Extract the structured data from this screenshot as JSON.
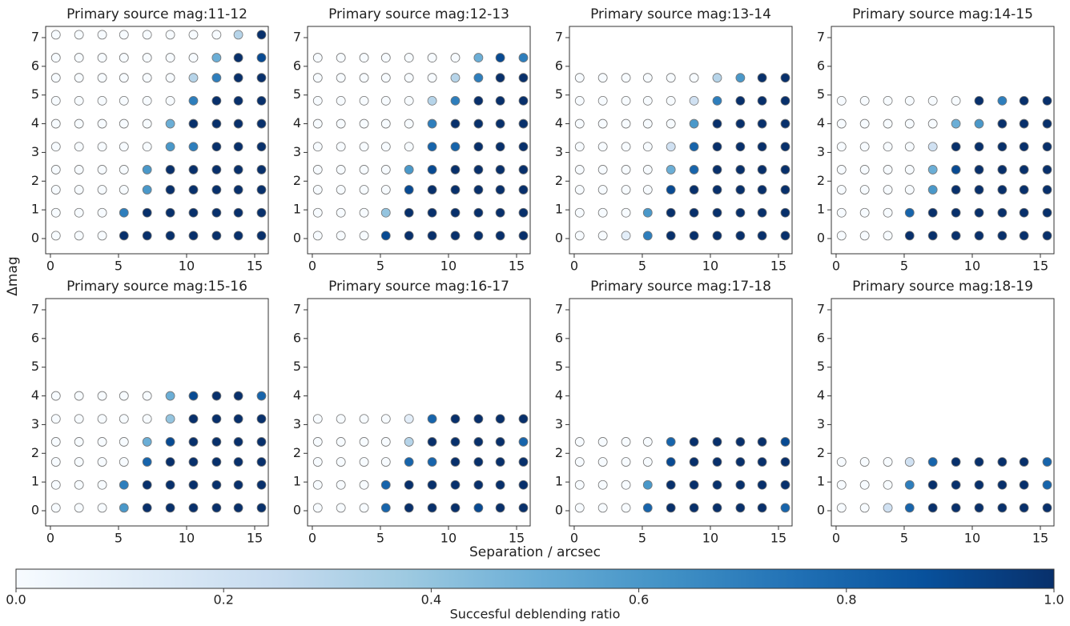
{
  "chart_data": [
    {
      "type": "scatter",
      "title": "Primary source mag:11-12",
      "x": [
        0.4,
        2.1,
        3.8,
        5.4,
        7.1,
        8.8,
        10.5,
        12.2,
        13.8,
        15.5
      ],
      "y": [
        0.1,
        0.9,
        1.7,
        2.4,
        3.2,
        4.0,
        4.8,
        5.6,
        6.3,
        7.1
      ],
      "values": [
        [
          0,
          0,
          0,
          1,
          1,
          1,
          1,
          1,
          1,
          1
        ],
        [
          0,
          0,
          0,
          0.7,
          1,
          1,
          1,
          1,
          1,
          1
        ],
        [
          0,
          0,
          0,
          0,
          0.6,
          1,
          1,
          1,
          1,
          1
        ],
        [
          0,
          0,
          0,
          0,
          0.6,
          1,
          1,
          1,
          1,
          1
        ],
        [
          0,
          0,
          0,
          0,
          0,
          0.6,
          0.7,
          1,
          1,
          1
        ],
        [
          0,
          0,
          0,
          0,
          0,
          0.5,
          1,
          1,
          1,
          1
        ],
        [
          0,
          0,
          0,
          0,
          0,
          0,
          0.7,
          1,
          1,
          1
        ],
        [
          0,
          0,
          0,
          0,
          0,
          0,
          0.3,
          0.7,
          1,
          1
        ],
        [
          0,
          0,
          0,
          0,
          0,
          0,
          0,
          0.5,
          1,
          0.9
        ],
        [
          0,
          0,
          0,
          0,
          0,
          0,
          0,
          0,
          0.3,
          1
        ]
      ],
      "xlim": [
        -0.35,
        16.0
      ],
      "ylim": [
        -0.53,
        7.39
      ],
      "xticks": [
        0,
        5,
        10,
        15
      ],
      "yticks": [
        0,
        1,
        2,
        3,
        4,
        5,
        6,
        7
      ]
    },
    {
      "type": "scatter",
      "title": "Primary source mag:12-13",
      "x": [
        0.4,
        2.1,
        3.8,
        5.4,
        7.1,
        8.8,
        10.5,
        12.2,
        13.8,
        15.5
      ],
      "y": [
        0.1,
        0.9,
        1.7,
        2.4,
        3.2,
        4.0,
        4.8,
        5.6,
        6.3
      ],
      "values": [
        [
          0,
          0,
          0,
          0.9,
          1,
          1,
          1,
          1,
          1,
          1
        ],
        [
          0,
          0,
          0,
          0.4,
          1,
          1,
          1,
          1,
          1,
          1
        ],
        [
          0,
          0,
          0,
          0,
          0.9,
          1,
          1,
          1,
          1,
          1
        ],
        [
          0,
          0,
          0,
          0,
          0.6,
          0.9,
          1,
          1,
          1,
          1
        ],
        [
          0,
          0,
          0,
          0,
          0,
          0.8,
          0.8,
          1,
          1,
          1
        ],
        [
          0,
          0,
          0,
          0,
          0,
          0.7,
          1,
          1,
          1,
          1
        ],
        [
          0,
          0,
          0,
          0,
          0,
          0.3,
          0.7,
          1,
          1,
          1
        ],
        [
          0,
          0,
          0,
          0,
          0,
          0,
          0.3,
          0.7,
          1,
          1
        ],
        [
          0,
          0,
          0,
          0,
          0,
          0,
          0,
          0.5,
          0.9,
          0.7
        ]
      ],
      "xlim": [
        -0.35,
        16.0
      ],
      "ylim": [
        -0.53,
        7.39
      ],
      "xticks": [
        0,
        5,
        10,
        15
      ],
      "yticks": [
        0,
        1,
        2,
        3,
        4,
        5,
        6,
        7
      ]
    },
    {
      "type": "scatter",
      "title": "Primary source mag:13-14",
      "x": [
        0.4,
        2.1,
        3.8,
        5.4,
        7.1,
        8.8,
        10.5,
        12.2,
        13.8,
        15.5
      ],
      "y": [
        0.1,
        0.9,
        1.7,
        2.4,
        3.2,
        4.0,
        4.8,
        5.6
      ],
      "values": [
        [
          0,
          0,
          0.1,
          0.7,
          1,
          1,
          1,
          1,
          1,
          1
        ],
        [
          0,
          0,
          0,
          0.6,
          1,
          1,
          1,
          1,
          1,
          1
        ],
        [
          0,
          0,
          0,
          0,
          0.9,
          1,
          1,
          1,
          1,
          1
        ],
        [
          0,
          0,
          0,
          0,
          0.5,
          0.8,
          1,
          1,
          1,
          1
        ],
        [
          0,
          0,
          0,
          0,
          0.2,
          0.8,
          1,
          1,
          1,
          1
        ],
        [
          0,
          0,
          0,
          0,
          0,
          0.6,
          1,
          1,
          1,
          1
        ],
        [
          0,
          0,
          0,
          0,
          0,
          0.2,
          0.7,
          1,
          1,
          1
        ],
        [
          0,
          0,
          0,
          0,
          0,
          0,
          0.3,
          0.6,
          1,
          1
        ]
      ],
      "xlim": [
        -0.35,
        16.0
      ],
      "ylim": [
        -0.53,
        7.39
      ],
      "xticks": [
        0,
        5,
        10,
        15
      ],
      "yticks": [
        0,
        1,
        2,
        3,
        4,
        5,
        6,
        7
      ]
    },
    {
      "type": "scatter",
      "title": "Primary source mag:14-15",
      "x": [
        0.4,
        2.1,
        3.8,
        5.4,
        7.1,
        8.8,
        10.5,
        12.2,
        13.8,
        15.5
      ],
      "y": [
        0.1,
        0.9,
        1.7,
        2.4,
        3.2,
        4.0,
        4.8
      ],
      "values": [
        [
          0,
          0,
          0,
          1,
          1,
          1,
          1,
          1,
          1,
          1
        ],
        [
          0,
          0,
          0,
          0.8,
          1,
          1,
          1,
          1,
          1,
          1
        ],
        [
          0,
          0,
          0,
          0,
          0.6,
          1,
          1,
          1,
          1,
          1
        ],
        [
          0,
          0,
          0,
          0,
          0.5,
          0.9,
          1,
          1,
          1,
          1
        ],
        [
          0,
          0,
          0,
          0,
          0.2,
          1,
          1,
          1,
          1,
          1
        ],
        [
          0,
          0,
          0,
          0,
          0,
          0.5,
          0.6,
          1,
          1,
          1
        ],
        [
          0,
          0,
          0,
          0,
          0,
          0,
          1,
          0.7,
          1,
          1
        ]
      ],
      "xlim": [
        -0.35,
        16.0
      ],
      "ylim": [
        -0.53,
        7.39
      ],
      "xticks": [
        0,
        5,
        10,
        15
      ],
      "yticks": [
        0,
        1,
        2,
        3,
        4,
        5,
        6,
        7
      ]
    },
    {
      "type": "scatter",
      "title": "Primary source mag:15-16",
      "x": [
        0.4,
        2.1,
        3.8,
        5.4,
        7.1,
        8.8,
        10.5,
        12.2,
        13.8,
        15.5
      ],
      "y": [
        0.1,
        0.9,
        1.7,
        2.4,
        3.2,
        4.0
      ],
      "values": [
        [
          0,
          0,
          0,
          0.6,
          1,
          1,
          1,
          1,
          1,
          1
        ],
        [
          0,
          0,
          0,
          0.7,
          1,
          1,
          1,
          1,
          1,
          1
        ],
        [
          0,
          0,
          0,
          0,
          0.8,
          1,
          1,
          1,
          1,
          1
        ],
        [
          0,
          0,
          0,
          0,
          0.5,
          0.9,
          1,
          1,
          1,
          1
        ],
        [
          0,
          0,
          0,
          0,
          0,
          0.4,
          1,
          1,
          1,
          1
        ],
        [
          0,
          0,
          0,
          0,
          0,
          0.5,
          0.9,
          1,
          1,
          0.8
        ]
      ],
      "xlim": [
        -0.35,
        16.0
      ],
      "ylim": [
        -0.53,
        7.39
      ],
      "xticks": [
        0,
        5,
        10,
        15
      ],
      "yticks": [
        0,
        1,
        2,
        3,
        4,
        5,
        6,
        7
      ]
    },
    {
      "type": "scatter",
      "title": "Primary source mag:16-17",
      "x": [
        0.4,
        2.1,
        3.8,
        5.4,
        7.1,
        8.8,
        10.5,
        12.2,
        13.8,
        15.5
      ],
      "y": [
        0.1,
        0.9,
        1.7,
        2.4,
        3.2
      ],
      "values": [
        [
          0,
          0,
          0,
          0.8,
          1,
          1,
          1,
          0.9,
          1,
          1
        ],
        [
          0,
          0,
          0,
          0.8,
          1,
          1,
          1,
          1,
          1,
          1
        ],
        [
          0,
          0,
          0,
          0,
          0.8,
          0.8,
          1,
          1,
          1,
          1
        ],
        [
          0,
          0,
          0,
          0,
          0.3,
          1,
          1,
          1,
          1,
          0.8
        ],
        [
          0,
          0,
          0,
          0,
          0.1,
          0.8,
          1,
          1,
          1,
          1
        ]
      ],
      "xlim": [
        -0.35,
        16.0
      ],
      "ylim": [
        -0.53,
        7.39
      ],
      "xticks": [
        0,
        5,
        10,
        15
      ],
      "yticks": [
        0,
        1,
        2,
        3,
        4,
        5,
        6,
        7
      ]
    },
    {
      "type": "scatter",
      "title": "Primary source mag:17-18",
      "x": [
        0.4,
        2.1,
        3.8,
        5.4,
        7.1,
        8.8,
        10.5,
        12.2,
        13.8,
        15.5
      ],
      "y": [
        0.1,
        0.9,
        1.7,
        2.4
      ],
      "values": [
        [
          0,
          0,
          0,
          0.8,
          1,
          1,
          1,
          1,
          1,
          0.8
        ],
        [
          0,
          0,
          0,
          0.6,
          1,
          1,
          1,
          1,
          1,
          1
        ],
        [
          0,
          0,
          0,
          0,
          0.9,
          1,
          1,
          1,
          1,
          1
        ],
        [
          0,
          0,
          0,
          0,
          0.8,
          1,
          1,
          1,
          1,
          0.9
        ]
      ],
      "xlim": [
        -0.35,
        16.0
      ],
      "ylim": [
        -0.53,
        7.39
      ],
      "xticks": [
        0,
        5,
        10,
        15
      ],
      "yticks": [
        0,
        1,
        2,
        3,
        4,
        5,
        6,
        7
      ]
    },
    {
      "type": "scatter",
      "title": "Primary source mag:18-19",
      "x": [
        0.4,
        2.1,
        3.8,
        5.4,
        7.1,
        8.8,
        10.5,
        12.2,
        13.8,
        15.5
      ],
      "y": [
        0.1,
        0.9,
        1.7
      ],
      "values": [
        [
          0,
          0,
          0.2,
          0.8,
          1,
          1,
          1,
          1,
          1,
          1
        ],
        [
          0,
          0,
          0,
          0.7,
          1,
          1,
          1,
          1,
          1,
          0.8
        ],
        [
          0,
          0,
          0,
          0.2,
          0.8,
          1,
          1,
          1,
          1,
          0.8
        ]
      ],
      "xlim": [
        -0.35,
        16.0
      ],
      "ylim": [
        -0.53,
        7.39
      ],
      "xticks": [
        0,
        5,
        10,
        15
      ],
      "yticks": [
        0,
        1,
        2,
        3,
        4,
        5,
        6,
        7
      ]
    }
  ],
  "figure": {
    "xlabel": "Separation / arcsec",
    "ylabel": "Δmag",
    "colorbar": {
      "label": "Succesful deblending ratio",
      "lim": [
        0,
        1
      ],
      "ticks": [
        {
          "value": 0,
          "label": "0.0"
        },
        0.2,
        0.4,
        0.6,
        0.8,
        {
          "value": 1,
          "label": "1.0"
        }
      ],
      "colormap": [
        "#f7fbff",
        "#deebf7",
        "#c6dbef",
        "#9ecae1",
        "#6baed6",
        "#4292c6",
        "#2171b5",
        "#08519c",
        "#08306b"
      ]
    }
  }
}
